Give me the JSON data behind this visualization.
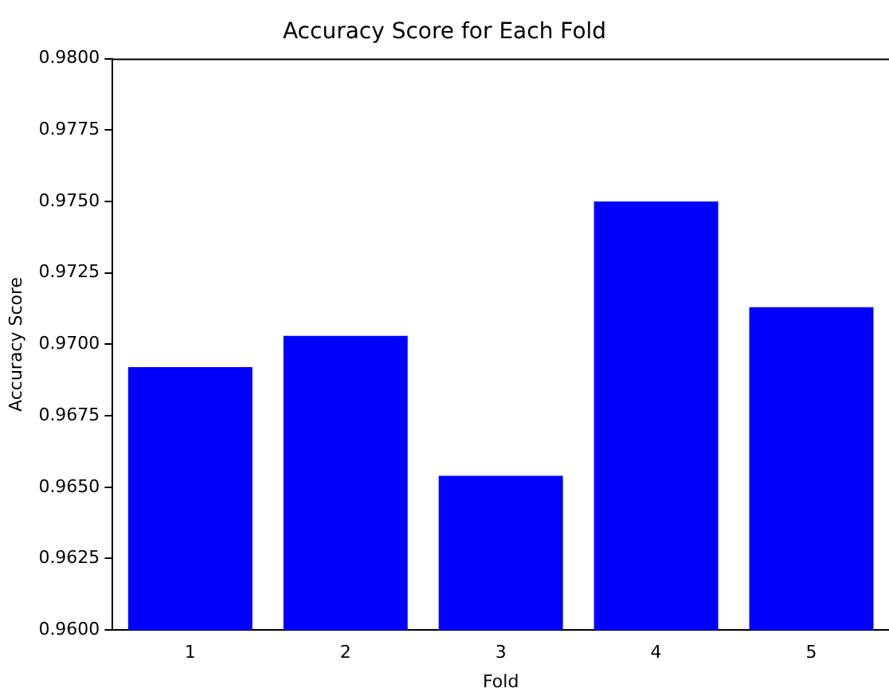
{
  "chart_data": {
    "type": "bar",
    "title": "Accuracy Score for Each Fold",
    "xlabel": "Fold",
    "ylabel": "Accuracy Score",
    "categories": [
      "1",
      "2",
      "3",
      "4",
      "5"
    ],
    "values": [
      0.9692,
      0.9703,
      0.9654,
      0.975,
      0.9713
    ],
    "color": "#0000ff",
    "ylim": [
      0.96,
      0.98
    ],
    "yticks": [
      {
        "value": 0.96,
        "label": "0.9600"
      },
      {
        "value": 0.9625,
        "label": "0.9625"
      },
      {
        "value": 0.965,
        "label": "0.9650"
      },
      {
        "value": 0.9675,
        "label": "0.9675"
      },
      {
        "value": 0.97,
        "label": "0.9700"
      },
      {
        "value": 0.9725,
        "label": "0.9725"
      },
      {
        "value": 0.975,
        "label": "0.9750"
      },
      {
        "value": 0.9775,
        "label": "0.9775"
      },
      {
        "value": 0.98,
        "label": "0.9800"
      }
    ],
    "grid": false,
    "legend": false
  }
}
